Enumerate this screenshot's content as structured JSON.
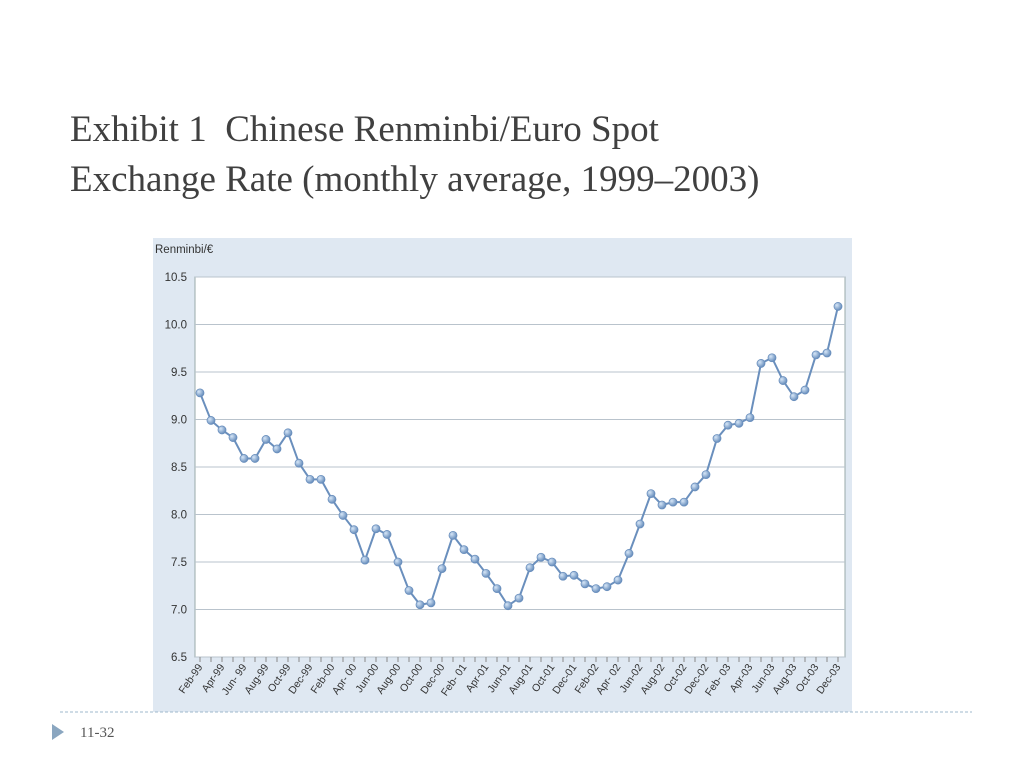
{
  "chart_data": {
    "type": "line",
    "title_lines": [
      "Exhibit 1  Chinese Renminbi/Euro Spot",
      "Exchange Rate (monthly average, 1999–2003)"
    ],
    "ylabel": "Renminbi/€",
    "page_number": "11-32",
    "categories": [
      "Feb-99",
      null,
      "Apr-99",
      null,
      "Jun- 99",
      null,
      "Aug-99",
      null,
      "Oct-99",
      null,
      "Dec-99",
      null,
      "Feb-00",
      null,
      "Apr- 00",
      null,
      "Jun-00",
      null,
      "Aug-00",
      null,
      "Oct-00",
      null,
      "Dec-00",
      null,
      "Feb- 01",
      null,
      "Apr-01",
      null,
      "Jun-01",
      null,
      "Aug-01",
      null,
      "Oct-01",
      null,
      "Dec-01",
      null,
      "Feb-02",
      null,
      "Apr- 02",
      null,
      "Jun-02",
      null,
      "Aug-02",
      null,
      "Oct-02",
      null,
      "Dec-02",
      null,
      "Feb- 03",
      null,
      "Apr-03",
      null,
      "Jun-03",
      null,
      "Aug-03",
      null,
      "Oct-03",
      null,
      "Dec-03"
    ],
    "series": [
      {
        "name": "Renminbi/€",
        "color": "#6a8fbd",
        "values": [
          9.28,
          8.99,
          8.89,
          8.81,
          8.59,
          8.59,
          8.79,
          8.69,
          8.86,
          8.54,
          8.37,
          8.37,
          8.16,
          7.99,
          7.84,
          7.52,
          7.85,
          7.79,
          7.5,
          7.2,
          7.05,
          7.07,
          7.43,
          7.78,
          7.63,
          7.53,
          7.38,
          7.22,
          7.04,
          7.12,
          7.44,
          7.55,
          7.5,
          7.35,
          7.36,
          7.27,
          7.22,
          7.24,
          7.31,
          7.59,
          7.9,
          8.22,
          8.1,
          8.13,
          8.13,
          8.29,
          8.42,
          8.8,
          8.94,
          8.96,
          9.02,
          9.59,
          9.65,
          9.41,
          9.24,
          9.31,
          9.68,
          9.7,
          10.19
        ]
      }
    ],
    "ylim": [
      6.5,
      10.5
    ],
    "yticks": [
      {
        "value": 6.5,
        "label": "6.5"
      },
      {
        "value": 7,
        "label": "7.0"
      },
      {
        "value": 7.5,
        "label": "7.5"
      },
      {
        "value": 8,
        "label": "8.0"
      },
      {
        "value": 8.5,
        "label": "8.5"
      },
      {
        "value": 9,
        "label": "9.0"
      },
      {
        "value": 9.5,
        "label": "9.5"
      },
      {
        "value": 10,
        "label": "10.0"
      },
      {
        "value": 10.5,
        "label": "10.5"
      }
    ],
    "grid": true
  }
}
